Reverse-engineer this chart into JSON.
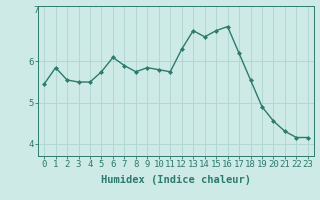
{
  "x": [
    0,
    1,
    2,
    3,
    4,
    5,
    6,
    7,
    8,
    9,
    10,
    11,
    12,
    13,
    14,
    15,
    16,
    17,
    18,
    19,
    20,
    21,
    22,
    23
  ],
  "y": [
    5.45,
    5.85,
    5.55,
    5.5,
    5.5,
    5.75,
    6.1,
    5.9,
    5.75,
    5.85,
    5.8,
    5.75,
    6.3,
    6.75,
    6.6,
    6.75,
    6.85,
    6.2,
    5.55,
    4.9,
    4.55,
    4.3,
    4.15,
    4.15
  ],
  "line_color": "#2d7a6e",
  "marker_color": "#2d7a6e",
  "bg_color": "#ceeae6",
  "grid_color": "#aed4cf",
  "xlabel": "Humidex (Indice chaleur)",
  "ylim": [
    3.7,
    7.35
  ],
  "xlim": [
    -0.5,
    23.5
  ],
  "yticks": [
    4,
    5,
    6
  ],
  "ytick_label_top": "7",
  "xtick_labels": [
    "0",
    "1",
    "2",
    "3",
    "4",
    "5",
    "6",
    "7",
    "8",
    "9",
    "10",
    "11",
    "12",
    "13",
    "14",
    "15",
    "16",
    "17",
    "18",
    "19",
    "20",
    "21",
    "22",
    "23"
  ],
  "axis_fontsize": 7,
  "tick_fontsize": 6.5,
  "xlabel_fontsize": 7.5
}
